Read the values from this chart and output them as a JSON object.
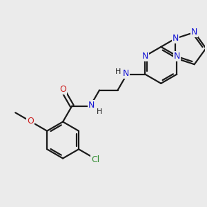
{
  "bg_color": "#ebebeb",
  "bond_color": "#1a1a1a",
  "N_color": "#1414d4",
  "O_color": "#cc2020",
  "Cl_color": "#2e8b2e",
  "line_width": 1.6,
  "font_size": 8.5,
  "figsize": [
    3.0,
    3.0
  ],
  "dpi": 100,
  "xlim": [
    0,
    10
  ],
  "ylim": [
    0,
    10
  ]
}
